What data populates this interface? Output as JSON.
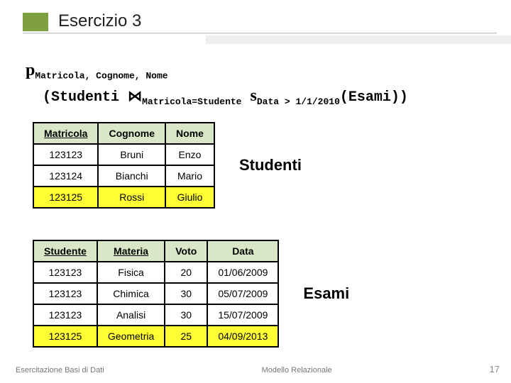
{
  "title": "Esercizio 3",
  "expr": {
    "pi": "p",
    "projection": "Matricola, Cognome, Nome",
    "lparen": "(",
    "rel1": "Studenti",
    "join": "⋈",
    "join_cond": "Matricola=Studente",
    "sigma": "s",
    "sel_cond": "Data > 1/1/2010",
    "rel2": "(Esami))"
  },
  "studenti": {
    "caption": "Studenti",
    "headers": [
      "Matricola",
      "Cognome",
      "Nome"
    ],
    "key_cols": [
      0
    ],
    "rows": [
      {
        "cells": [
          "123123",
          "Bruni",
          "Enzo"
        ],
        "hl": false
      },
      {
        "cells": [
          "123124",
          "Bianchi",
          "Mario"
        ],
        "hl": false
      },
      {
        "cells": [
          "123125",
          "Rossi",
          "Giulio"
        ],
        "hl": true
      }
    ]
  },
  "esami": {
    "caption": "Esami",
    "headers": [
      "Studente",
      "Materia",
      "Voto",
      "Data"
    ],
    "key_cols": [
      0,
      1
    ],
    "rows": [
      {
        "cells": [
          "123123",
          "Fisica",
          "20",
          "01/06/2009"
        ],
        "hl": false
      },
      {
        "cells": [
          "123123",
          "Chimica",
          "30",
          "05/07/2009"
        ],
        "hl": false
      },
      {
        "cells": [
          "123123",
          "Analisi",
          "30",
          "15/07/2009"
        ],
        "hl": false
      },
      {
        "cells": [
          "123125",
          "Geometria",
          "25",
          "04/09/2013"
        ],
        "hl": true
      }
    ]
  },
  "footer": {
    "left": "Esercitazione Basi di Dati",
    "center": "Modello Relazionale",
    "page": "17"
  },
  "colors": {
    "header_block": "#7fa040",
    "table_header": "#d9e6c7",
    "highlight": "#ffff33",
    "background": "#ffffff"
  }
}
